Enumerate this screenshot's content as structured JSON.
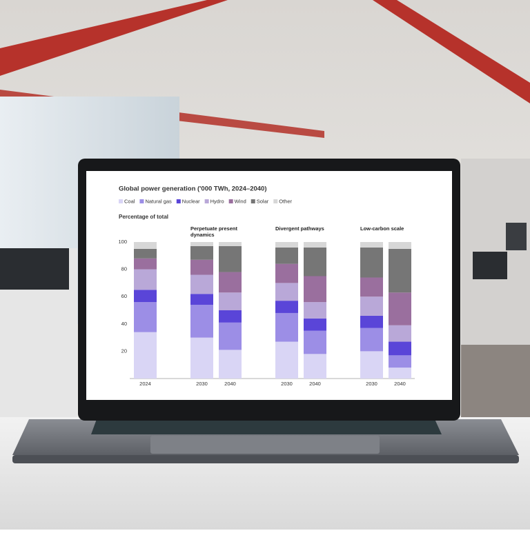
{
  "chart_data": {
    "type": "stacked-bar",
    "title": "Global power generation ('000 TWh, 2024–2040)",
    "y_label": "Percentage of total",
    "categories": [
      "2024",
      "2030",
      "2040",
      "2030",
      "2040",
      "2030",
      "2040"
    ],
    "groups": [
      "Perpetuate present dynamics",
      "Divergent pathways",
      "Low-carbon scale"
    ],
    "series": [
      {
        "name": "Coal",
        "color": "#d9d5f5",
        "values": [
          34,
          30,
          21,
          27,
          18,
          20,
          8
        ]
      },
      {
        "name": "Natural gas",
        "color": "#9c8ee6",
        "values": [
          22,
          24,
          20,
          21,
          17,
          17,
          9
        ]
      },
      {
        "name": "Nuclear",
        "color": "#5a45d8",
        "values": [
          9,
          8,
          9,
          9,
          9,
          9,
          10
        ]
      },
      {
        "name": "Hydro",
        "color": "#b9a8d8",
        "values": [
          15,
          14,
          13,
          13,
          12,
          14,
          12
        ]
      },
      {
        "name": "Wind",
        "color": "#9a6f9e",
        "values": [
          8,
          11,
          15,
          14,
          19,
          14,
          24
        ]
      },
      {
        "name": "Solar",
        "color": "#767676",
        "values": [
          7,
          10,
          19,
          12,
          21,
          22,
          32
        ]
      },
      {
        "name": "Other",
        "color": "#d7d7d7",
        "values": [
          5,
          3,
          3,
          4,
          4,
          4,
          5
        ]
      }
    ],
    "ylim": [
      0,
      100
    ],
    "yticks": [
      20,
      40,
      60,
      80,
      100
    ]
  }
}
